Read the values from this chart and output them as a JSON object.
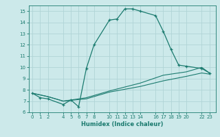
{
  "xlabel": "Humidex (Indice chaleur)",
  "bg_color": "#cce9ea",
  "grid_color": "#b0d4d6",
  "line_color": "#1a7a6e",
  "line1_x": [
    0,
    1,
    2,
    4,
    5,
    6,
    7,
    8,
    10,
    11,
    12,
    13,
    14,
    16,
    17,
    18,
    19,
    20,
    22,
    23
  ],
  "line1_y": [
    7.7,
    7.3,
    7.2,
    6.7,
    7.1,
    6.5,
    9.9,
    12.0,
    14.2,
    14.3,
    15.2,
    15.2,
    15.0,
    14.6,
    13.2,
    11.6,
    10.2,
    10.1,
    9.9,
    9.5
  ],
  "line2_x": [
    0,
    2,
    4,
    7,
    10,
    14,
    17,
    20,
    22,
    23
  ],
  "line2_y": [
    7.7,
    7.4,
    7.0,
    7.3,
    7.9,
    8.6,
    9.3,
    9.6,
    10.0,
    9.5
  ],
  "line3_x": [
    0,
    2,
    4,
    7,
    10,
    14,
    17,
    20,
    22,
    23
  ],
  "line3_y": [
    7.7,
    7.4,
    7.0,
    7.2,
    7.8,
    8.3,
    8.8,
    9.2,
    9.5,
    9.4
  ],
  "xlim": [
    -0.5,
    23.8
  ],
  "ylim": [
    6.0,
    15.5
  ],
  "xticks": [
    0,
    1,
    2,
    4,
    5,
    6,
    7,
    8,
    10,
    11,
    12,
    13,
    14,
    16,
    17,
    18,
    19,
    20,
    22,
    23
  ],
  "yticks": [
    6,
    7,
    8,
    9,
    10,
    11,
    12,
    13,
    14,
    15
  ]
}
